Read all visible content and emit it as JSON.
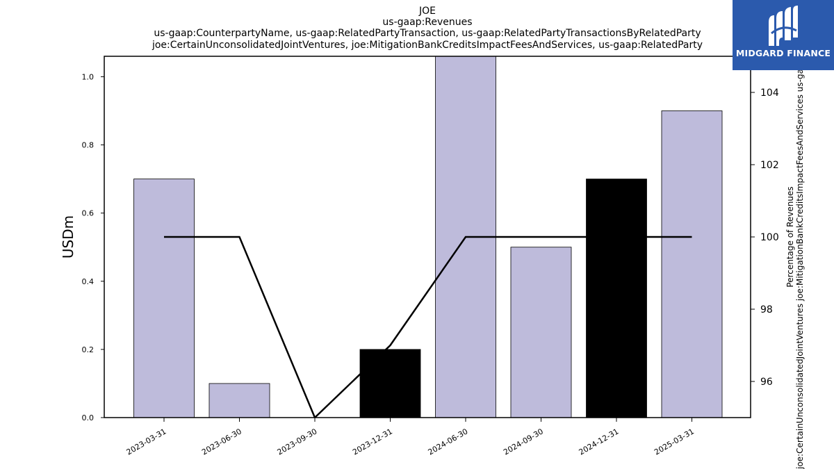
{
  "brand": {
    "name": "MIDGARD FINANCE",
    "bg_color": "#2b5aad",
    "icon": "midgard-logo-icon"
  },
  "chart_data": {
    "type": "bar",
    "title_lines": [
      "JOE",
      "us-gaap:Revenues",
      "us-gaap:CounterpartyName, us-gaap:RelatedPartyTransaction, us-gaap:RelatedPartyTransactionsByRelatedParty",
      "joe:CertainUnconsolidatedJointVentures, joe:MitigationBankCreditsImpactFeesAndServices, us-gaap:RelatedParty"
    ],
    "categories": [
      "2023-03-31",
      "2023-06-30",
      "2023-09-30",
      "2023-12-31",
      "2024-06-30",
      "2024-09-30",
      "2024-12-31",
      "2025-03-31"
    ],
    "values": [
      0.7,
      0.1,
      0.0,
      0.2,
      1.06,
      0.5,
      0.7,
      0.9
    ],
    "bar_colors": [
      "#bebbdb",
      "#bebbdb",
      "#bebbdb",
      "#000000",
      "#bebbdb",
      "#bebbdb",
      "#000000",
      "#bebbdb"
    ],
    "ylabel": "USDm",
    "ylim": [
      0,
      1.06
    ],
    "yticks": [
      "0.0",
      "0.2",
      "0.4",
      "0.6",
      "0.8",
      "1.0"
    ],
    "secondary": {
      "type": "line",
      "ylabel_lines": [
        "Percentage of Revenues",
        "joe:CertainUnconsolidatedJointVentures joe:MitigationBankCreditsImpactFeesAndServices us-gaap"
      ],
      "values": [
        100,
        100,
        95,
        97,
        100,
        100,
        100,
        100
      ],
      "ylim": [
        95,
        105
      ],
      "yticks": [
        "96",
        "98",
        "100",
        "102",
        "104"
      ],
      "color": "#000000"
    },
    "grid": false,
    "legend": "none"
  }
}
